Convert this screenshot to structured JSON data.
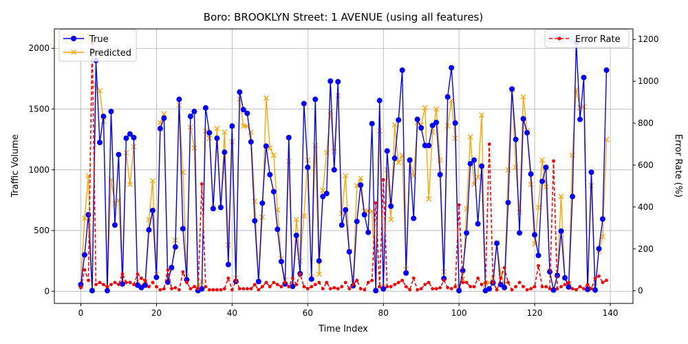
{
  "chart_data": {
    "type": "line",
    "title": "Boro: BROOKLYN Street: 1 AVENUE (using all features)",
    "xlabel": "Time Index",
    "ylabel": "Traffic Volume",
    "y2label": "Error Rate (%)",
    "xlim": [
      -7,
      146
    ],
    "ylim": [
      -100,
      2160
    ],
    "y2lim": [
      -60,
      1250
    ],
    "xticks": [
      0,
      20,
      40,
      60,
      80,
      100,
      120,
      140
    ],
    "yticks": [
      0,
      500,
      1000,
      1500,
      2000
    ],
    "y2ticks": [
      0,
      200,
      400,
      600,
      800,
      1000,
      1200
    ],
    "grid": true,
    "legend_left_position": "upper left",
    "legend_right_position": "upper right",
    "colors": {
      "true": "#0000ff",
      "predicted": "#ffa500",
      "error": "#ff0000"
    },
    "series": [
      {
        "name": "True",
        "axis": "left",
        "marker": "circle",
        "values": [
          55,
          300,
          630,
          5,
          1900,
          1225,
          1440,
          5,
          1480,
          545,
          1125,
          60,
          1260,
          1295,
          1265,
          50,
          30,
          50,
          505,
          665,
          115,
          1340,
          1425,
          75,
          195,
          365,
          1580,
          515,
          95,
          1440,
          1480,
          5,
          20,
          1510,
          1305,
          680,
          1260,
          690,
          1145,
          220,
          1360,
          80,
          1640,
          1495,
          1465,
          1230,
          580,
          80,
          725,
          1195,
          960,
          820,
          510,
          245,
          60,
          1265,
          40,
          460,
          145,
          1545,
          1020,
          100,
          1580,
          250,
          780,
          805,
          1730,
          1000,
          1725,
          545,
          670,
          325,
          45,
          575,
          875,
          630,
          485,
          1380,
          5,
          1570,
          20,
          1155,
          700,
          1095,
          1410,
          1820,
          150,
          1080,
          600,
          1415,
          1345,
          1200,
          1200,
          1365,
          1390,
          960,
          105,
          1600,
          1840,
          1385,
          5,
          170,
          480,
          1050,
          1080,
          555,
          1030,
          5,
          20,
          70,
          395,
          55,
          30,
          730,
          1665,
          1250,
          480,
          1420,
          1305,
          965,
          465,
          295,
          905,
          1020,
          160,
          10,
          130,
          495,
          110,
          35,
          780,
          2050,
          1415,
          1760,
          15,
          980,
          10,
          350,
          595,
          1820
        ]
      },
      {
        "name": "Predicted",
        "axis": "left",
        "marker": "x",
        "values": [
          50,
          600,
          950,
          10,
          1700,
          1650,
          1400,
          20,
          920,
          720,
          750,
          100,
          1140,
          880,
          1190,
          80,
          50,
          70,
          590,
          910,
          140,
          1390,
          1460,
          120,
          190,
          420,
          1530,
          980,
          120,
          1350,
          1180,
          30,
          80,
          1320,
          1260,
          690,
          1340,
          690,
          1310,
          380,
          1230,
          110,
          1580,
          1360,
          1360,
          1310,
          740,
          80,
          610,
          1590,
          1180,
          1120,
          670,
          270,
          90,
          1070,
          60,
          590,
          250,
          620,
          1080,
          120,
          1200,
          140,
          830,
          1140,
          1480,
          1150,
          1610,
          640,
          950,
          330,
          70,
          870,
          930,
          660,
          660,
          660,
          10,
          1320,
          40,
          1000,
          590,
          1370,
          1060,
          1120,
          180,
          1080,
          950,
          1390,
          1370,
          1510,
          760,
          1310,
          1500,
          1080,
          160,
          1360,
          1570,
          1260,
          40,
          100,
          680,
          1270,
          880,
          940,
          1450,
          50,
          70,
          110,
          400,
          150,
          60,
          1000,
          1660,
          1020,
          650,
          1600,
          1320,
          880,
          390,
          690,
          1080,
          860,
          170,
          10,
          130,
          780,
          110,
          60,
          1120,
          1660,
          1510,
          1520,
          30,
          870,
          40,
          330,
          450,
          1250
        ]
      },
      {
        "name": "Error Rate",
        "axis": "right",
        "marker": "dot",
        "values": [
          15,
          100,
          50,
          1180,
          30,
          40,
          30,
          20,
          30,
          40,
          30,
          80,
          40,
          40,
          30,
          80,
          60,
          50,
          20,
          40,
          20,
          5,
          10,
          100,
          10,
          15,
          5,
          90,
          40,
          10,
          20,
          10,
          510,
          20,
          5,
          5,
          5,
          5,
          10,
          60,
          5,
          50,
          10,
          10,
          10,
          10,
          30,
          5,
          20,
          40,
          20,
          40,
          30,
          20,
          40,
          20,
          60,
          30,
          80,
          20,
          10,
          20,
          30,
          40,
          10,
          40,
          10,
          15,
          10,
          20,
          40,
          10,
          30,
          50,
          10,
          5,
          40,
          50,
          420,
          20,
          530,
          20,
          20,
          30,
          40,
          50,
          20,
          5,
          60,
          5,
          10,
          30,
          40,
          10,
          10,
          15,
          50,
          15,
          10,
          20,
          410,
          40,
          40,
          20,
          20,
          60,
          30,
          40,
          700,
          40,
          5,
          60,
          110,
          40,
          5,
          20,
          40,
          20,
          5,
          10,
          20,
          120,
          20,
          20,
          10,
          620,
          10,
          20,
          30,
          40,
          10,
          5,
          20,
          10,
          30,
          10,
          60,
          70,
          40,
          50
        ]
      }
    ]
  }
}
